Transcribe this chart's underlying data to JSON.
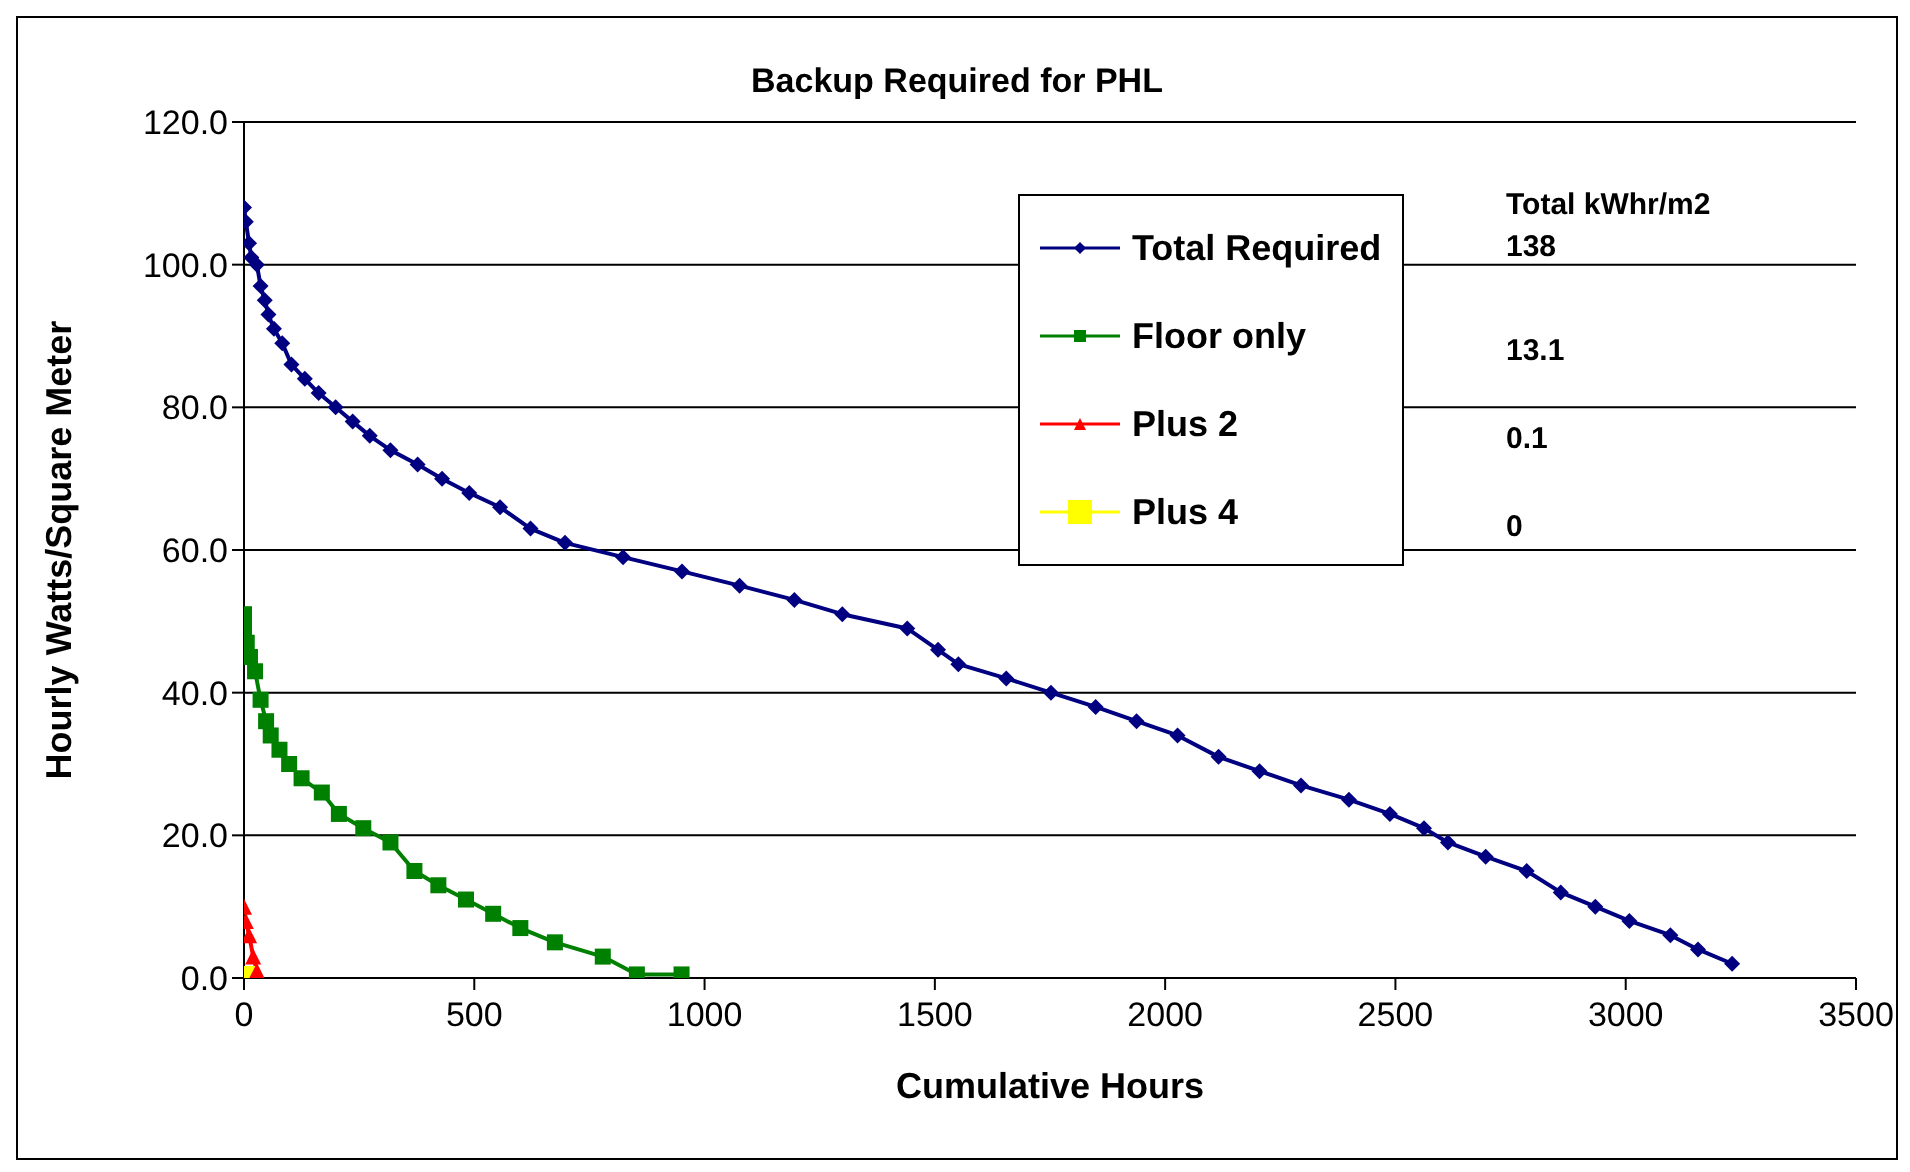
{
  "chart_data": {
    "type": "line",
    "title": "Backup Required for PHL",
    "xlabel": "Cumulative Hours",
    "ylabel": "Hourly Watts/Square Meter",
    "xlim": [
      0,
      3500
    ],
    "xticks": [
      0,
      500,
      1000,
      1500,
      2000,
      2500,
      3000,
      3500
    ],
    "ylim": [
      0,
      120
    ],
    "yticks": [
      {
        "value": 0,
        "label": "0.0"
      },
      {
        "value": 20,
        "label": "20.0"
      },
      {
        "value": 40,
        "label": "40.0"
      },
      {
        "value": 60,
        "label": "60.0"
      },
      {
        "value": 80,
        "label": "80.0"
      },
      {
        "value": 100,
        "label": "100.0"
      },
      {
        "value": 120,
        "label": "120.0"
      }
    ],
    "grid": "y",
    "legend": "top right",
    "annotations": [
      "Total kWhr/m2",
      "138",
      "13.1",
      "0.1",
      "0"
    ],
    "series": [
      {
        "name": "Total Required",
        "color": "#000080",
        "marker": "diamond",
        "x": [
          0,
          4,
          11,
          16,
          28,
          36,
          45,
          53,
          65,
          83,
          103,
          132,
          162,
          199,
          236,
          273,
          318,
          377,
          430,
          489,
          556,
          622,
          697,
          823,
          951,
          1076,
          1195,
          1299,
          1440,
          1507,
          1551,
          1655,
          1752,
          1849,
          1938,
          2027,
          2116,
          2205,
          2295,
          2399,
          2488,
          2562,
          2614,
          2696,
          2785,
          2859,
          2934,
          3008,
          3097,
          3157,
          3231
        ],
        "values": [
          108,
          106,
          103,
          101,
          100,
          97,
          95,
          93,
          91,
          89,
          86,
          84,
          82,
          80,
          78,
          76,
          74,
          72,
          70,
          68,
          66,
          63,
          61,
          59,
          57,
          55,
          53,
          51,
          49,
          46,
          44,
          42,
          40,
          38,
          36,
          34,
          31,
          29,
          27,
          25,
          23,
          21,
          19,
          17,
          15,
          12,
          10,
          8,
          6,
          4,
          2
        ]
      },
      {
        "name": "Floor only",
        "color": "#008000",
        "marker": "square",
        "x": [
          0,
          0,
          6,
          13,
          24,
          36,
          48,
          58,
          77,
          98,
          125,
          169,
          206,
          259,
          318,
          370,
          422,
          482,
          541,
          600,
          675,
          779,
          853,
          950
        ],
        "values": [
          51,
          49,
          47,
          45,
          43,
          39,
          36,
          34,
          32,
          30,
          28,
          26,
          23,
          21,
          19,
          15,
          13,
          11,
          9,
          7,
          5,
          3,
          0.5,
          0.5
        ]
      },
      {
        "name": "Plus 2",
        "color": "#ff0000",
        "marker": "triangle",
        "x": [
          0,
          4,
          11,
          20,
          28
        ],
        "values": [
          10,
          8,
          6,
          3,
          1
        ]
      },
      {
        "name": "Plus 4",
        "color": "#ffff00",
        "marker": "square",
        "x": [
          5
        ],
        "values": [
          0
        ]
      }
    ]
  }
}
